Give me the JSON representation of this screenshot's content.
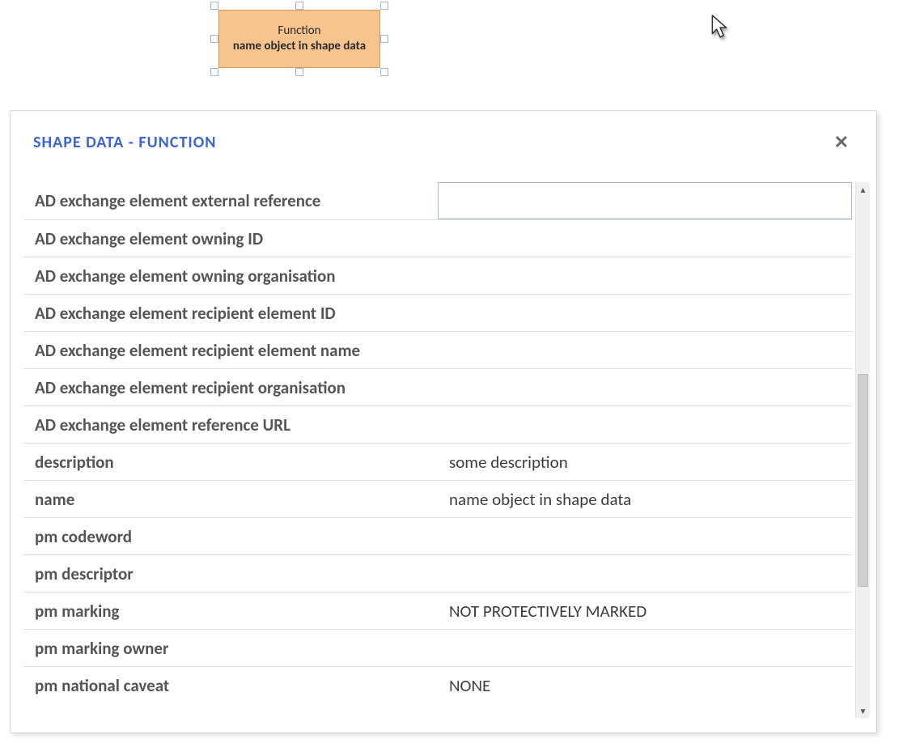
{
  "shape": {
    "type_label": "Function",
    "name_label": "name object in shape data",
    "fill_color": "#f8c48e",
    "border_color": "#d19a5e",
    "text_color": "#2a2a2a",
    "handle_border": "#a8b7d6",
    "handle_fill": "#ffffff"
  },
  "cursor": {
    "stroke": "#333333",
    "fill": "#ffffff"
  },
  "panel": {
    "title": "SHAPE DATA - FUNCTION",
    "title_color": "#3a63d6",
    "close_glyph": "✕",
    "background": "#ffffff",
    "border_color": "#d6d6d6",
    "row_border_color": "#e0e0e0",
    "label_color": "#555555",
    "value_color": "#3d3d3d",
    "fields": [
      {
        "label": "AD exchange element external reference",
        "value": "",
        "active": true
      },
      {
        "label": "AD exchange element owning ID",
        "value": ""
      },
      {
        "label": "AD exchange element owning organisation",
        "value": ""
      },
      {
        "label": "AD exchange element recipient element ID",
        "value": ""
      },
      {
        "label": "AD exchange element recipient element name",
        "value": ""
      },
      {
        "label": "AD exchange element recipient organisation",
        "value": ""
      },
      {
        "label": "AD exchange element reference URL",
        "value": ""
      },
      {
        "label": "description",
        "value": "some description"
      },
      {
        "label": "name",
        "value": "name object in shape data"
      },
      {
        "label": "pm codeword",
        "value": ""
      },
      {
        "label": "pm descriptor",
        "value": ""
      },
      {
        "label": "pm marking",
        "value": "NOT PROTECTIVELY MARKED"
      },
      {
        "label": "pm marking owner",
        "value": ""
      },
      {
        "label": "pm national caveat",
        "value": "NONE"
      }
    ]
  },
  "scrollbar": {
    "up_glyph": "▲",
    "down_glyph": "▼",
    "track_color": "#f0f0f0",
    "thumb_color": "#cfcfcf"
  }
}
